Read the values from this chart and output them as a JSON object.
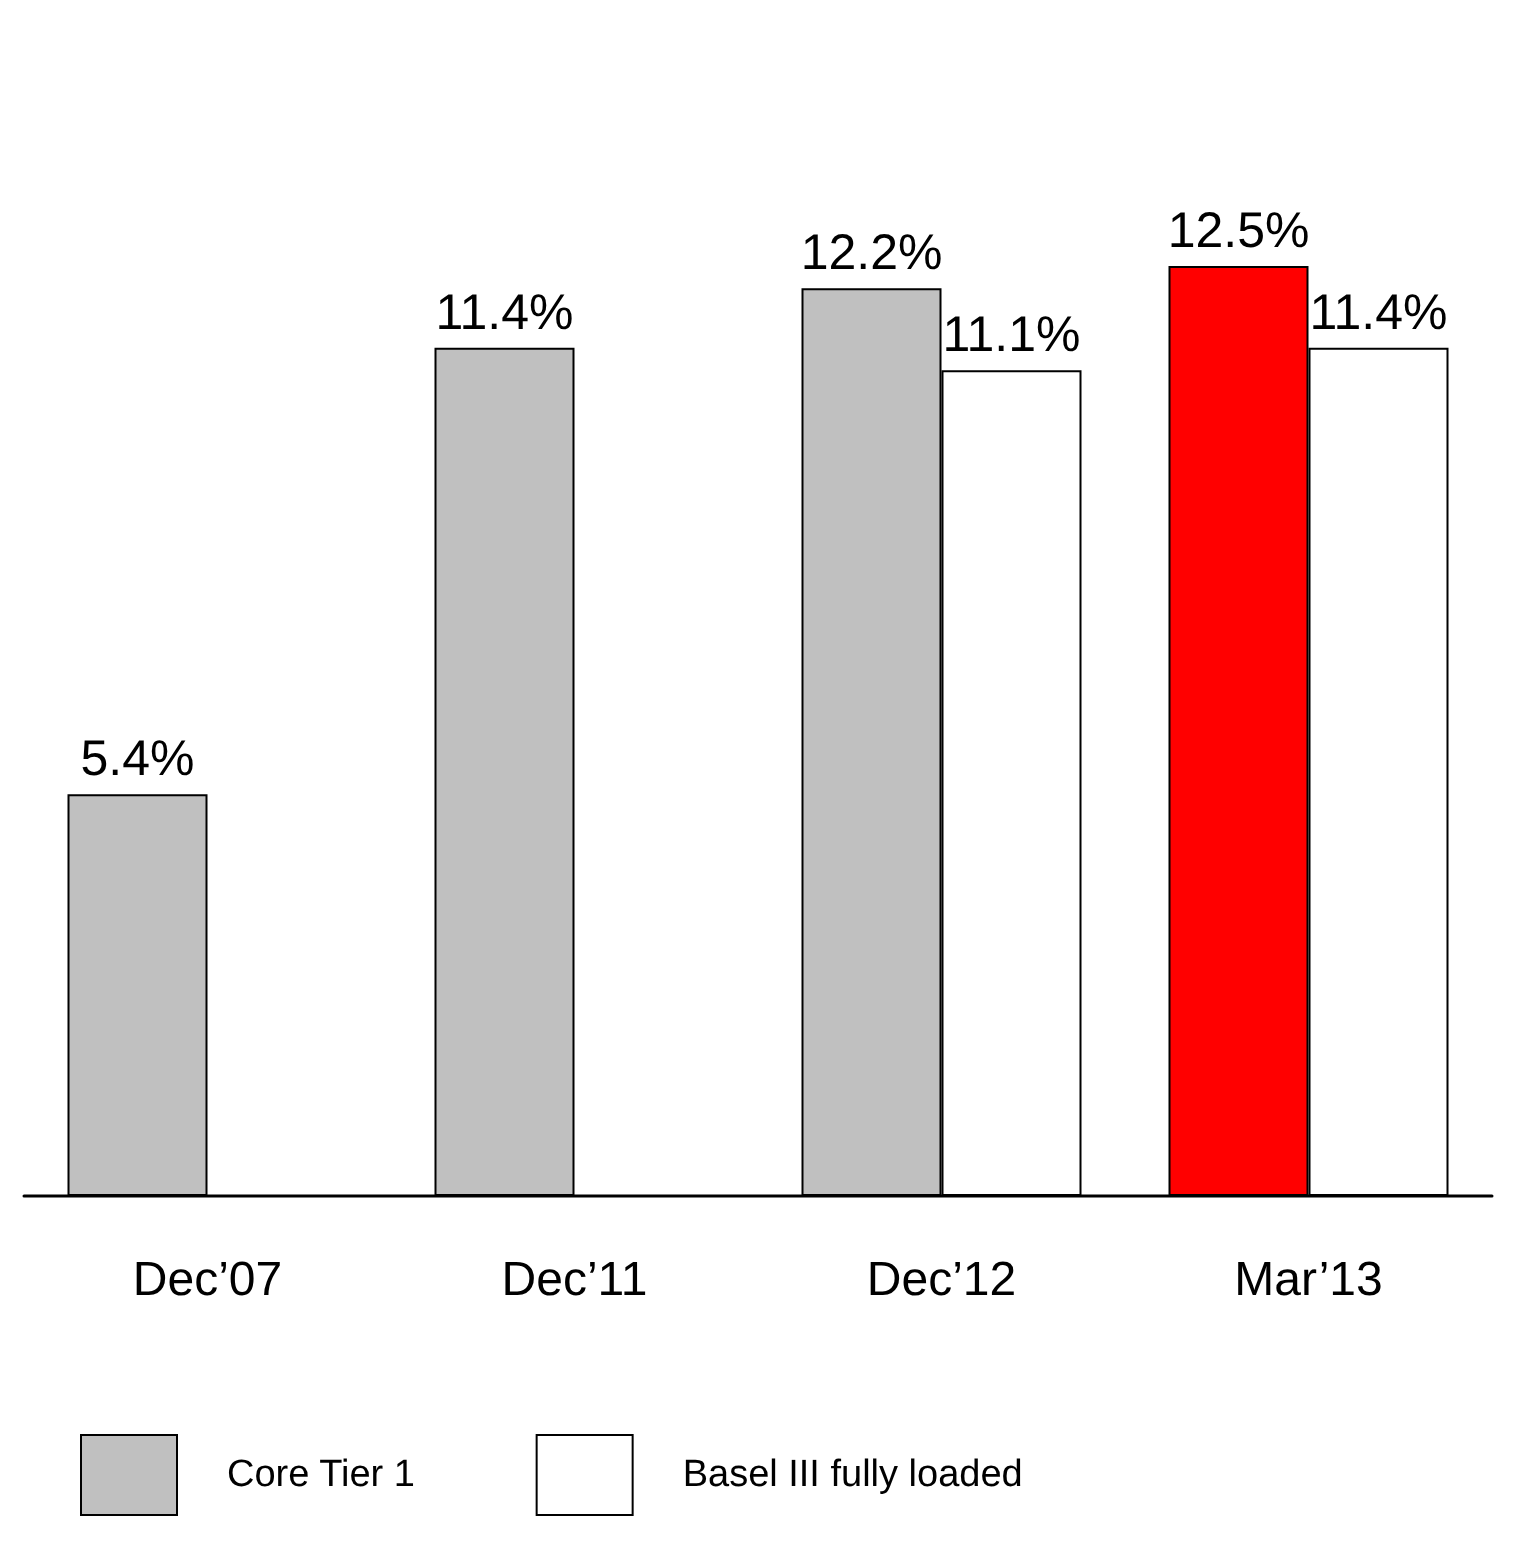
{
  "chart_data": {
    "type": "bar",
    "categories": [
      "Dec’07",
      "Dec’11",
      "Dec’12",
      "Mar’13"
    ],
    "series": [
      {
        "name": "Core Tier 1",
        "color": "#c0c0c0",
        "colors": [
          "#c0c0c0",
          "#c0c0c0",
          "#c0c0c0",
          "#ff0000"
        ],
        "values": [
          5.4,
          11.4,
          12.2,
          12.5
        ],
        "value_labels": [
          "5.4%",
          "11.4%",
          "12.2%",
          "12.5%"
        ]
      },
      {
        "name": "Basel III fully loaded",
        "color": "#ffffff",
        "values": [
          null,
          null,
          11.1,
          11.4
        ],
        "value_labels": [
          null,
          null,
          "11.1%",
          "11.4%"
        ]
      }
    ],
    "legend": "bottom"
  }
}
